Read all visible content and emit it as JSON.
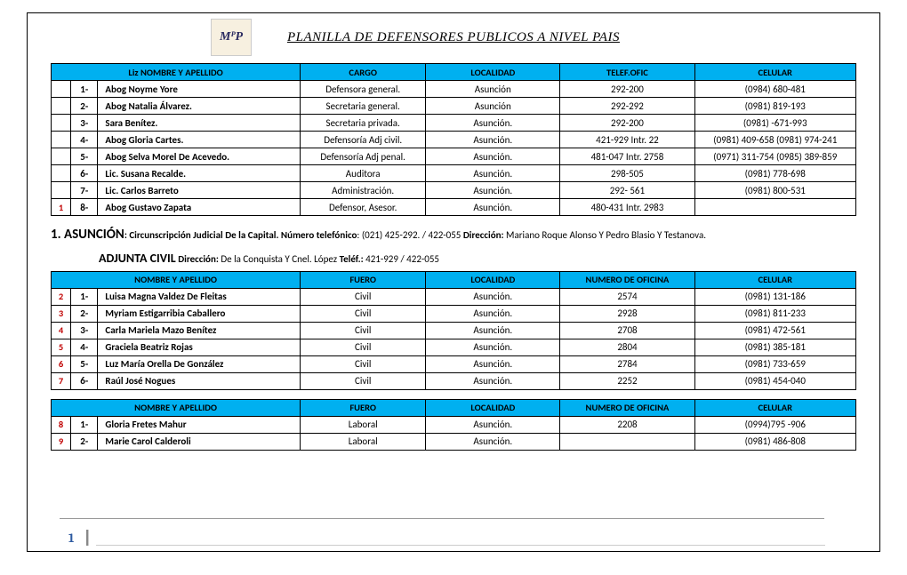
{
  "logo_text": "MᴾP",
  "title": "PLANILLA DE DEFENSORES PUBLICOS A NIVEL PAIS",
  "table1": {
    "headers": [
      "Liz NOMBRE Y APELLIDO",
      "CARGO",
      "LOCALIDAD",
      "TELEF.OFIC",
      "CELULAR"
    ],
    "rows": [
      {
        "mark": "",
        "n": "1-",
        "name": "Abog Noyme Yore",
        "c2": "Defensora general.",
        "c3": "Asunción",
        "c4": "292-200",
        "c5": "(0984) 680-481"
      },
      {
        "mark": "",
        "n": "2-",
        "name": "Abog Natalia Álvarez.",
        "c2": "Secretaria general.",
        "c3": "Asunción",
        "c4": "292-292",
        "c5": "(0981) 819-193"
      },
      {
        "mark": "",
        "n": "3-",
        "name": "Sara Benítez.",
        "c2": "Secretaria privada.",
        "c3": "Asunción.",
        "c4": "292-200",
        "c5": "(0981) -671-993"
      },
      {
        "mark": "",
        "n": "4-",
        "name": "Abog Gloria Cartes.",
        "c2": "Defensoría Adj civil.",
        "c3": "Asunción.",
        "c4": "421-929 Intr. 22",
        "c5": "(0981) 409-658 (0981) 974-241"
      },
      {
        "mark": "",
        "n": "5-",
        "name": "Abog Selva Morel De Acevedo.",
        "c2": "Defensoría Adj penal.",
        "c3": "Asunción.",
        "c4": "481-047 Intr. 2758",
        "c5": "(0971) 311-754 (0985) 389-859"
      },
      {
        "mark": "",
        "n": "6-",
        "name": "Lic. Susana Recalde.",
        "c2": "Auditora",
        "c3": "Asunción.",
        "c4": "298-505",
        "c5": "(0981) 778-698"
      },
      {
        "mark": "",
        "n": "7-",
        "name": "Lic. Carlos Barreto",
        "c2": "Administración.",
        "c3": "Asunción.",
        "c4": "292- 561",
        "c5": "(0981) 800-531"
      },
      {
        "mark": "1",
        "n": "8-",
        "name": "Abog Gustavo Zapata",
        "c2": "Defensor, Asesor.",
        "c3": "Asunción.",
        "c4": "480-431 Intr. 2983",
        "c5": ""
      }
    ]
  },
  "section1": {
    "prefix": "1. ASUNCIÓN",
    "line1_a": ": Circunscripción Judicial De la Capital.   ",
    "line1_b_label": "Número telefónico",
    "line1_b_val": ": (021) 425-292. / 422-055   ",
    "line1_c_label": "Dirección:",
    "line1_c_val": " Mariano Roque Alonso Y Pedro Blasio Y Testanova.",
    "prefix2": "ADJUNTA CIVIL",
    "line2_a_label": "  Dirección:",
    "line2_a_val": "  De la Conquista Y Cnel. López   ",
    "line2_b_label": "Teléf.:",
    "line2_b_val": " 421-929 / 422-055"
  },
  "headers2": [
    "NOMBRE Y APELLIDO",
    "FUERO",
    "LOCALIDAD",
    "NUMERO DE OFICINA",
    "CELULAR"
  ],
  "table2": {
    "rows": [
      {
        "mark": "2",
        "n": "1-",
        "name": "Luisa Magna Valdez De Fleitas",
        "c2": "Civil",
        "c3": "Asunción.",
        "c4": "2574",
        "c5": "(0981) 131-186"
      },
      {
        "mark": "3",
        "n": "2-",
        "name": "Myriam Estigarribia Caballero",
        "c2": "Civil",
        "c3": "Asunción.",
        "c4": "2928",
        "c5": "(0981) 811-233"
      },
      {
        "mark": "4",
        "n": "3-",
        "name": "Carla Mariela Mazo Benítez",
        "c2": "Civil",
        "c3": "Asunción.",
        "c4": "2708",
        "c5": "(0981) 472-561"
      },
      {
        "mark": "5",
        "n": "4-",
        "name": "Graciela Beatriz Rojas",
        "c2": "Civil",
        "c3": "Asunción.",
        "c4": "2804",
        "c5": "(0981) 385-181"
      },
      {
        "mark": "6",
        "n": "5-",
        "name": "Luz María Orella De González",
        "c2": "Civil",
        "c3": "Asunción.",
        "c4": "2784",
        "c5": "(0981) 733-659"
      },
      {
        "mark": "7",
        "n": "6-",
        "name": "Raúl José Nogues",
        "c2": "Civil",
        "c3": "Asunción.",
        "c4": "2252",
        "c5": "(0981) 454-040"
      }
    ]
  },
  "table3": {
    "rows": [
      {
        "mark": "8",
        "n": "1-",
        "name": "Gloria Fretes Mahur",
        "c2": "Laboral",
        "c3": "Asunción.",
        "c4": "2208",
        "c5": "(0994)795 -906"
      },
      {
        "mark": "9",
        "n": "2-",
        "name": "Marie Carol Calderoli",
        "c2": "Laboral",
        "c3": "Asunción.",
        "c4": "",
        "c5": "(0981) 486-808"
      }
    ]
  },
  "page_number": "1",
  "colors": {
    "header_bg": "#00b0f0",
    "mark_red": "#c00000",
    "page_blue": "#2e5aa0"
  }
}
